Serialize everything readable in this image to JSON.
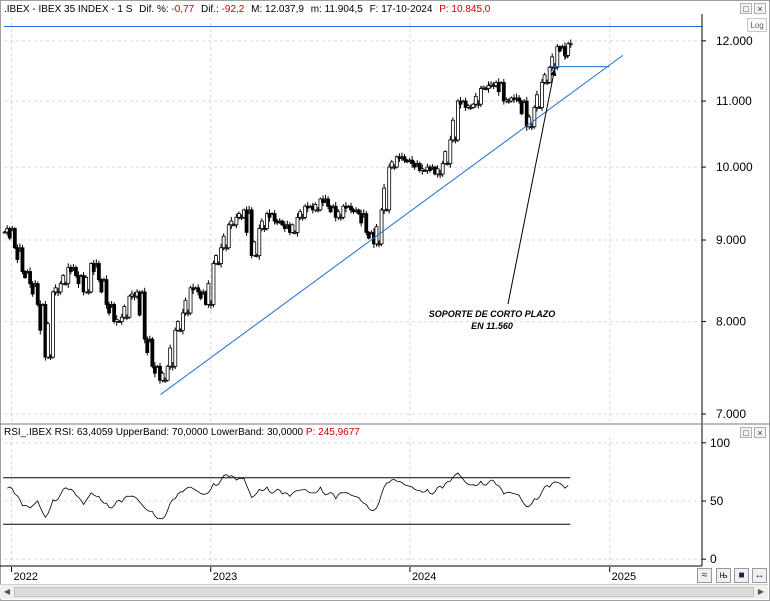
{
  "header": {
    "symbol": ".IBEX - IBEX 35 INDEX - 1 S",
    "diff_pct_label": "Dif. %:",
    "diff_pct_value": "-0,77",
    "diff_label": "Dif.:",
    "diff_value": "-92,2",
    "max_label": "M: 12.037,9",
    "min_label": "m: 11.904,5",
    "date_label": "F: 17-10-2024",
    "price_label": "P: 10.845,0"
  },
  "rsi_header": {
    "name": "RSI_.IBEX",
    "rsi_label": "RSI: 63,4059",
    "upper_label": "UpperBand: 70,0000",
    "lower_label": "LowerBand: 30,0000",
    "price_label": "P: 245,9677"
  },
  "log_label": "Log",
  "annotation": {
    "line1": "SOPORTE DE CORTO PLAZO",
    "line2": "EN 11.560"
  },
  "colors": {
    "trendline": "#1f6fd0",
    "candle": "#000000",
    "grid": "#d8d8d8",
    "negative": "#cc0000"
  },
  "icons": {
    "close": "close-icon",
    "restore": "restore-icon",
    "wave": "wave-icon",
    "bars": "bars-icon",
    "nav": "nav-arrows-icon"
  },
  "chart_data": [
    {
      "type": "candlestick",
      "title": "",
      "y_axis": {
        "ticks": [
          7000,
          8000,
          9000,
          10000,
          11000,
          12000
        ],
        "tick_labels": [
          "7.000",
          "8.000",
          "9.000",
          "10.000",
          "11.000",
          "12.000"
        ],
        "ylim": [
          6920,
          12420
        ],
        "scale": "log"
      },
      "x_axis": {
        "ticks": [
          "2022",
          "2023",
          "2024",
          "2025"
        ]
      },
      "grid": true,
      "series": [
        {
          "name": "IBEX 35 INDEX",
          "points": [
            {
              "x": "2021-12-24",
              "close": 9150
            },
            {
              "x": "2022-01-07",
              "close": 8900
            },
            {
              "x": "2022-01-21",
              "close": 8600
            },
            {
              "x": "2022-02-04",
              "close": 8450
            },
            {
              "x": "2022-02-18",
              "close": 8200
            },
            {
              "x": "2022-03-04",
              "close": 7600
            },
            {
              "x": "2022-03-18",
              "close": 8350
            },
            {
              "x": "2022-04-01",
              "close": 8450
            },
            {
              "x": "2022-04-15",
              "close": 8650
            },
            {
              "x": "2022-04-29",
              "close": 8550
            },
            {
              "x": "2022-05-13",
              "close": 8350
            },
            {
              "x": "2022-05-27",
              "close": 8700
            },
            {
              "x": "2022-06-10",
              "close": 8500
            },
            {
              "x": "2022-06-24",
              "close": 8200
            },
            {
              "x": "2022-07-08",
              "close": 8000
            },
            {
              "x": "2022-07-22",
              "close": 8050
            },
            {
              "x": "2022-08-05",
              "close": 8300
            },
            {
              "x": "2022-08-19",
              "close": 8350
            },
            {
              "x": "2022-09-02",
              "close": 7800
            },
            {
              "x": "2022-09-16",
              "close": 7500
            },
            {
              "x": "2022-09-30",
              "close": 7350
            },
            {
              "x": "2022-10-14",
              "close": 7500
            },
            {
              "x": "2022-10-28",
              "close": 7900
            },
            {
              "x": "2022-11-11",
              "close": 8100
            },
            {
              "x": "2022-11-25",
              "close": 8400
            },
            {
              "x": "2022-12-09",
              "close": 8350
            },
            {
              "x": "2022-12-23",
              "close": 8200
            },
            {
              "x": "2023-01-06",
              "close": 8700
            },
            {
              "x": "2023-01-20",
              "close": 8900
            },
            {
              "x": "2023-02-03",
              "close": 9200
            },
            {
              "x": "2023-02-17",
              "close": 9300
            },
            {
              "x": "2023-03-03",
              "close": 9400
            },
            {
              "x": "2023-03-17",
              "close": 8800
            },
            {
              "x": "2023-03-31",
              "close": 9150
            },
            {
              "x": "2023-04-14",
              "close": 9350
            },
            {
              "x": "2023-04-28",
              "close": 9250
            },
            {
              "x": "2023-05-12",
              "close": 9200
            },
            {
              "x": "2023-05-26",
              "close": 9100
            },
            {
              "x": "2023-06-09",
              "close": 9300
            },
            {
              "x": "2023-06-23",
              "close": 9450
            },
            {
              "x": "2023-07-07",
              "close": 9400
            },
            {
              "x": "2023-07-21",
              "close": 9550
            },
            {
              "x": "2023-08-04",
              "close": 9450
            },
            {
              "x": "2023-08-18",
              "close": 9300
            },
            {
              "x": "2023-09-01",
              "close": 9450
            },
            {
              "x": "2023-09-15",
              "close": 9400
            },
            {
              "x": "2023-09-29",
              "close": 9350
            },
            {
              "x": "2023-10-13",
              "close": 9100
            },
            {
              "x": "2023-10-27",
              "close": 8950
            },
            {
              "x": "2023-11-10",
              "close": 9400
            },
            {
              "x": "2023-11-24",
              "close": 10000
            },
            {
              "x": "2023-12-08",
              "close": 10150
            },
            {
              "x": "2023-12-22",
              "close": 10100
            },
            {
              "x": "2024-01-05",
              "close": 10050
            },
            {
              "x": "2024-01-19",
              "close": 9950
            },
            {
              "x": "2024-02-02",
              "close": 10000
            },
            {
              "x": "2024-02-16",
              "close": 9900
            },
            {
              "x": "2024-03-01",
              "close": 10050
            },
            {
              "x": "2024-03-15",
              "close": 10400
            },
            {
              "x": "2024-03-29",
              "close": 11000
            },
            {
              "x": "2024-04-12",
              "close": 10900
            },
            {
              "x": "2024-04-26",
              "close": 10950
            },
            {
              "x": "2024-05-10",
              "close": 11200
            },
            {
              "x": "2024-05-24",
              "close": 11250
            },
            {
              "x": "2024-06-07",
              "close": 11300
            },
            {
              "x": "2024-06-21",
              "close": 11000
            },
            {
              "x": "2024-07-05",
              "close": 11050
            },
            {
              "x": "2024-07-19",
              "close": 11000
            },
            {
              "x": "2024-08-02",
              "close": 10600
            },
            {
              "x": "2024-08-16",
              "close": 10900
            },
            {
              "x": "2024-08-30",
              "close": 11300
            },
            {
              "x": "2024-09-13",
              "close": 11550
            },
            {
              "x": "2024-09-27",
              "close": 11900
            },
            {
              "x": "2024-10-11",
              "close": 11750
            },
            {
              "x": "2024-10-17",
              "close": 11950
            }
          ]
        }
      ],
      "annotations": [
        {
          "kind": "trendline",
          "from": {
            "x": "2022-10-01",
            "y": 7200
          },
          "to": {
            "x": "2025-01-25",
            "y": 11750
          }
        },
        {
          "kind": "horizontal",
          "from_x": "2024-09-15",
          "to_x": "2024-12-31",
          "y": 11560,
          "label": "SOPORTE DE CORTO PLAZO EN 11.560"
        },
        {
          "kind": "horizontal",
          "y": 12250
        }
      ]
    },
    {
      "type": "line",
      "title": "",
      "y_axis": {
        "ticks": [
          0,
          50,
          100
        ],
        "tick_labels": [
          "0",
          "50",
          "100"
        ],
        "ylim": [
          -5,
          105
        ]
      },
      "x_axis": {
        "ticks": [
          "2022",
          "2023",
          "2024",
          "2025"
        ]
      },
      "bands": {
        "upper": 70,
        "lower": 30
      },
      "grid": true,
      "series": [
        {
          "name": "RSI",
          "points": [
            {
              "x": "2021-12-24",
              "y": 61
            },
            {
              "x": "2022-01-07",
              "y": 56
            },
            {
              "x": "2022-01-21",
              "y": 46
            },
            {
              "x": "2022-02-04",
              "y": 44
            },
            {
              "x": "2022-02-18",
              "y": 50
            },
            {
              "x": "2022-03-04",
              "y": 36
            },
            {
              "x": "2022-03-18",
              "y": 51
            },
            {
              "x": "2022-04-01",
              "y": 56
            },
            {
              "x": "2022-04-15",
              "y": 60
            },
            {
              "x": "2022-04-29",
              "y": 55
            },
            {
              "x": "2022-05-13",
              "y": 47
            },
            {
              "x": "2022-05-27",
              "y": 57
            },
            {
              "x": "2022-06-10",
              "y": 54
            },
            {
              "x": "2022-06-24",
              "y": 48
            },
            {
              "x": "2022-07-08",
              "y": 46
            },
            {
              "x": "2022-07-22",
              "y": 49
            },
            {
              "x": "2022-08-05",
              "y": 54
            },
            {
              "x": "2022-08-19",
              "y": 52
            },
            {
              "x": "2022-09-02",
              "y": 44
            },
            {
              "x": "2022-09-16",
              "y": 41
            },
            {
              "x": "2022-09-30",
              "y": 35
            },
            {
              "x": "2022-10-14",
              "y": 42
            },
            {
              "x": "2022-10-28",
              "y": 52
            },
            {
              "x": "2022-11-11",
              "y": 58
            },
            {
              "x": "2022-11-25",
              "y": 62
            },
            {
              "x": "2022-12-09",
              "y": 58
            },
            {
              "x": "2022-12-23",
              "y": 56
            },
            {
              "x": "2023-01-06",
              "y": 65
            },
            {
              "x": "2023-01-20",
              "y": 68
            },
            {
              "x": "2023-02-03",
              "y": 71
            },
            {
              "x": "2023-02-17",
              "y": 68
            },
            {
              "x": "2023-03-03",
              "y": 69
            },
            {
              "x": "2023-03-17",
              "y": 53
            },
            {
              "x": "2023-03-31",
              "y": 60
            },
            {
              "x": "2023-04-14",
              "y": 62
            },
            {
              "x": "2023-04-28",
              "y": 58
            },
            {
              "x": "2023-05-12",
              "y": 56
            },
            {
              "x": "2023-05-26",
              "y": 54
            },
            {
              "x": "2023-06-09",
              "y": 59
            },
            {
              "x": "2023-06-23",
              "y": 60
            },
            {
              "x": "2023-07-07",
              "y": 57
            },
            {
              "x": "2023-07-21",
              "y": 62
            },
            {
              "x": "2023-08-04",
              "y": 56
            },
            {
              "x": "2023-08-18",
              "y": 52
            },
            {
              "x": "2023-09-01",
              "y": 57
            },
            {
              "x": "2023-09-15",
              "y": 55
            },
            {
              "x": "2023-09-29",
              "y": 53
            },
            {
              "x": "2023-10-13",
              "y": 47
            },
            {
              "x": "2023-10-27",
              "y": 42
            },
            {
              "x": "2023-11-10",
              "y": 56
            },
            {
              "x": "2023-11-24",
              "y": 66
            },
            {
              "x": "2023-12-08",
              "y": 67
            },
            {
              "x": "2023-12-22",
              "y": 64
            },
            {
              "x": "2024-01-05",
              "y": 62
            },
            {
              "x": "2024-01-19",
              "y": 59
            },
            {
              "x": "2024-02-02",
              "y": 60
            },
            {
              "x": "2024-02-16",
              "y": 58
            },
            {
              "x": "2024-03-01",
              "y": 61
            },
            {
              "x": "2024-03-15",
              "y": 67
            },
            {
              "x": "2024-03-29",
              "y": 74
            },
            {
              "x": "2024-04-12",
              "y": 66
            },
            {
              "x": "2024-04-26",
              "y": 64
            },
            {
              "x": "2024-05-10",
              "y": 67
            },
            {
              "x": "2024-05-24",
              "y": 66
            },
            {
              "x": "2024-06-07",
              "y": 64
            },
            {
              "x": "2024-06-21",
              "y": 56
            },
            {
              "x": "2024-07-05",
              "y": 57
            },
            {
              "x": "2024-07-19",
              "y": 55
            },
            {
              "x": "2024-08-02",
              "y": 45
            },
            {
              "x": "2024-08-16",
              "y": 52
            },
            {
              "x": "2024-08-30",
              "y": 58
            },
            {
              "x": "2024-09-13",
              "y": 62
            },
            {
              "x": "2024-09-27",
              "y": 66
            },
            {
              "x": "2024-10-11",
              "y": 61
            },
            {
              "x": "2024-10-17",
              "y": 63.4
            }
          ]
        }
      ]
    }
  ]
}
